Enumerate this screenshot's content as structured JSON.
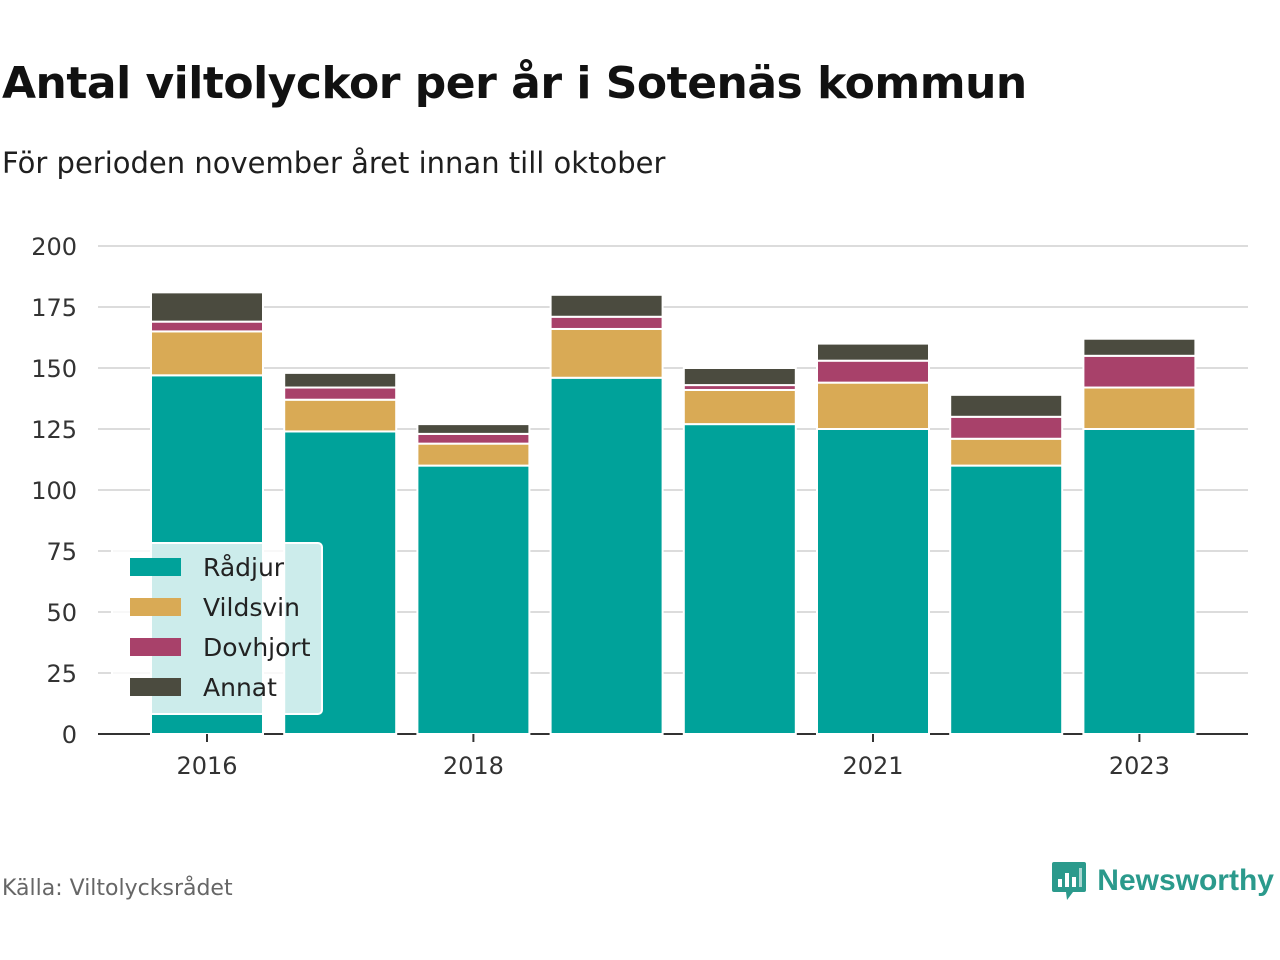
{
  "title": "Antal viltolyckor per år i Sotenäs kommun",
  "subtitle": "För perioden november året innan till oktober",
  "source": "Källa: Viltolycksrådet",
  "brand": {
    "name": "Newsworthy",
    "icon": "bar-chart-speech-bubble-icon",
    "color": "#2b9a8c"
  },
  "chart_data": {
    "type": "bar",
    "stacked": true,
    "categories": [
      "2016",
      "2017",
      "2018",
      "2019",
      "2020",
      "2021",
      "2022",
      "2023"
    ],
    "tick_labels": [
      "2016",
      "",
      "2018",
      "",
      "",
      "2021",
      "",
      "2023"
    ],
    "series": [
      {
        "name": "Rådjur",
        "color": "#00a29a",
        "values": [
          147,
          124,
          110,
          146,
          127,
          125,
          110,
          125
        ]
      },
      {
        "name": "Vildsvin",
        "color": "#d9aa55",
        "values": [
          18,
          13,
          9,
          20,
          14,
          19,
          11,
          17
        ]
      },
      {
        "name": "Dovhjort",
        "color": "#a8416a",
        "values": [
          4,
          5,
          4,
          5,
          2,
          9,
          9,
          13
        ]
      },
      {
        "name": "Annat",
        "color": "#4b4b3f",
        "values": [
          12,
          6,
          4,
          9,
          7,
          7,
          9,
          7
        ]
      }
    ],
    "ylim": [
      0,
      200
    ],
    "yticks": [
      0,
      25,
      50,
      75,
      100,
      125,
      150,
      175,
      200
    ],
    "xlabel": "",
    "ylabel": "",
    "grid": true,
    "legend": "bottom-left"
  }
}
